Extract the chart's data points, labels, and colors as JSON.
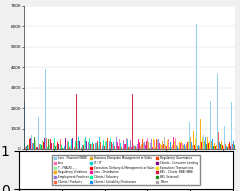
{
  "title": "",
  "n_groups": 60,
  "n_series": 18,
  "series": [
    {
      "label": "Loss - Financial (BBB)",
      "color": "#87CEEB"
    },
    {
      "label": "Loss",
      "color": "#FF69B4"
    },
    {
      "label": "T - FRAUD - ...",
      "color": "#90EE90"
    },
    {
      "label": "Regulatory Violations",
      "color": "#FFA500"
    },
    {
      "label": "Employment Practices",
      "color": "#9370DB"
    },
    {
      "label": "Clients / Products",
      "color": "#FF6347"
    },
    {
      "label": "Business Disruption Management or Sales",
      "color": "#DAA520"
    },
    {
      "label": "IT / IT",
      "color": "#00CED1"
    },
    {
      "label": "Execution, Delivery & Management or Sales",
      "color": "#FF0000"
    },
    {
      "label": "Loss - Distribution",
      "color": "#FF1493"
    },
    {
      "label": "Clients / Fiduciary",
      "color": "#00FA9A"
    },
    {
      "label": "Clients / Suitability Disclosures",
      "color": "#1E90FF"
    },
    {
      "label": "Regulatory Governance",
      "color": "#FF4500"
    },
    {
      "label": "Clients - Consumer Lending",
      "color": "#8B008B"
    },
    {
      "label": "Execution / Transactions",
      "color": "#FFD700"
    },
    {
      "label": "BEL - Clients, BBB (BBB)",
      "color": "#DC143C"
    },
    {
      "label": "BEL (Internal)",
      "color": "#228B22"
    },
    {
      "label": "Other",
      "color": "#A9A9A9"
    }
  ],
  "ylim": [
    0,
    7000
  ],
  "yticks": [
    0,
    1000,
    2000,
    3000,
    4000,
    5000,
    6000,
    7000
  ],
  "bg_color": "#F0F0F0",
  "plot_bg": "#FFFFFF",
  "grid_color": "#CCCCCC"
}
